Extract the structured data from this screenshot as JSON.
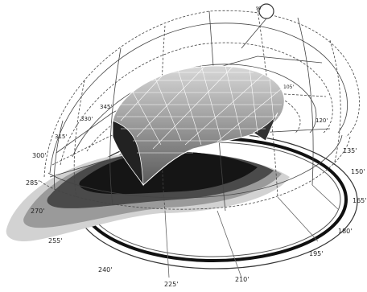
{
  "diagram": {
    "bearing_labels": [
      {
        "id": "b90",
        "text": "90'"
      },
      {
        "id": "b105",
        "text": "105'"
      },
      {
        "id": "b120",
        "text": "120'"
      },
      {
        "id": "b135",
        "text": "135'"
      },
      {
        "id": "b150",
        "text": "150'"
      },
      {
        "id": "b165",
        "text": "165'"
      },
      {
        "id": "b180",
        "text": "180'"
      },
      {
        "id": "b195",
        "text": "195'"
      },
      {
        "id": "b210",
        "text": "210'"
      },
      {
        "id": "b225",
        "text": "225'"
      },
      {
        "id": "b240",
        "text": "240'"
      },
      {
        "id": "b255",
        "text": "255'"
      },
      {
        "id": "b270",
        "text": "270'"
      },
      {
        "id": "b285",
        "text": "285'"
      },
      {
        "id": "b300",
        "text": "300'"
      },
      {
        "id": "b315",
        "text": "315'"
      },
      {
        "id": "b330",
        "text": "330'"
      },
      {
        "id": "b345",
        "text": "345'"
      }
    ],
    "colors": {
      "shadow_dark": "#111111",
      "shadow_light": "#c8c8c8",
      "mesh_stroke": "#ffffff",
      "grid_stroke": "#444444",
      "ring_dark": "#222222"
    }
  }
}
